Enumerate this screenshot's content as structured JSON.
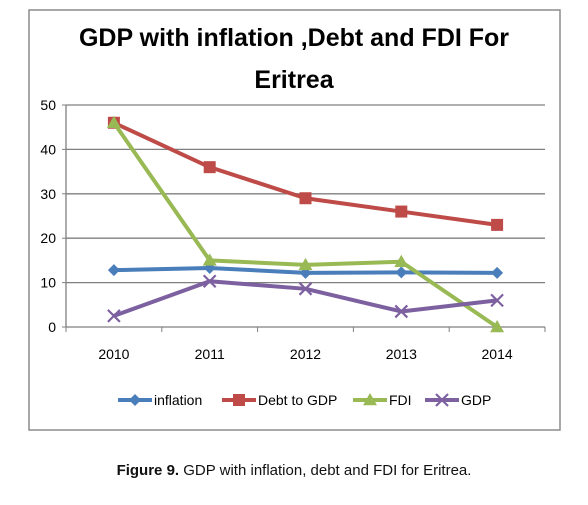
{
  "chart_data": {
    "type": "line",
    "title_lines": [
      "GDP with inflation ,Debt and FDI For",
      "Eritrea"
    ],
    "categories": [
      "2010",
      "2011",
      "2012",
      "2013",
      "2014"
    ],
    "ylim": [
      0,
      50
    ],
    "yticks": [
      "0",
      "10",
      "20",
      "30",
      "40",
      "50"
    ],
    "grid": true,
    "legend_position": "bottom",
    "series": [
      {
        "name": "inflation",
        "values": [
          12.8,
          13.3,
          12.2,
          12.3,
          12.2
        ],
        "color": "#4a7ebb",
        "marker": "diamond"
      },
      {
        "name": "Debt to GDP",
        "values": [
          46,
          36,
          29,
          26,
          23
        ],
        "color": "#be4b48",
        "marker": "square"
      },
      {
        "name": "FDI",
        "values": [
          46,
          15,
          14,
          14.7,
          0
        ],
        "color": "#98b954",
        "marker": "triangle"
      },
      {
        "name": "GDP",
        "values": [
          2.5,
          10.3,
          8.6,
          3.5,
          6
        ],
        "color": "#7d60a0",
        "marker": "x"
      }
    ]
  },
  "caption": {
    "label": "Figure 9.",
    "text": " GDP with inflation, debt and FDI for Eritrea."
  }
}
